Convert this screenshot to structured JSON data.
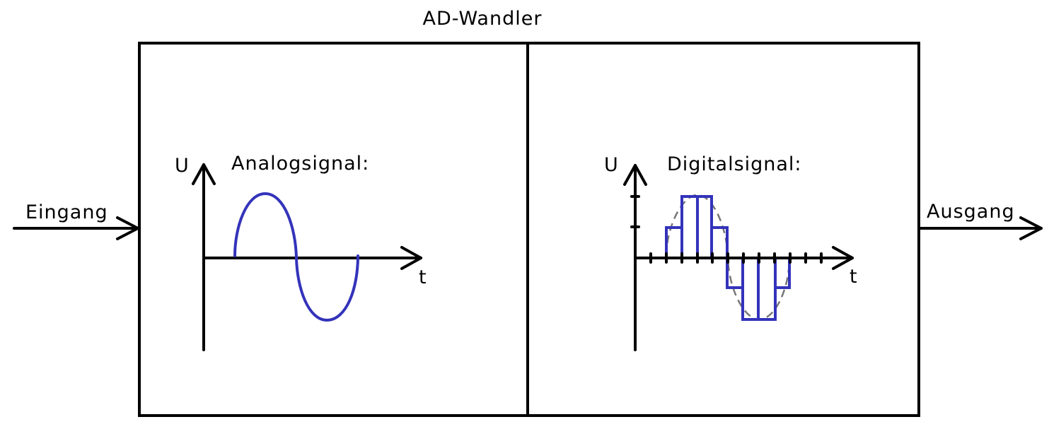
{
  "title": "AD-Wandler",
  "input_label": "Eingang",
  "output_label": "Ausgang",
  "analog_panel": {
    "title": "Analogsignal:",
    "y_axis_label": "U",
    "x_axis_label": "t"
  },
  "digital_panel": {
    "title": "Digitalsignal:",
    "y_axis_label": "U",
    "x_axis_label": "t"
  },
  "colors": {
    "line": "#000000",
    "signal": "#3333bb",
    "analog_reference": "#777777"
  }
}
